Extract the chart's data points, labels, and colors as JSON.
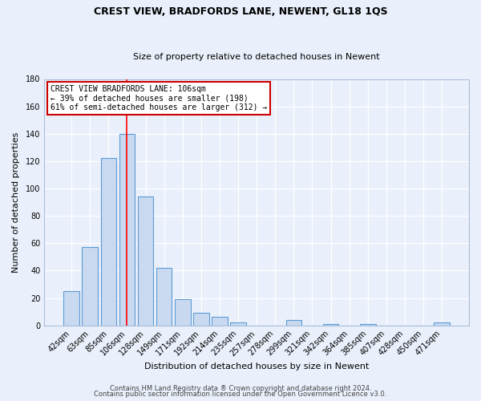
{
  "title": "CREST VIEW, BRADFORDS LANE, NEWENT, GL18 1QS",
  "subtitle": "Size of property relative to detached houses in Newent",
  "xlabel": "Distribution of detached houses by size in Newent",
  "ylabel": "Number of detached properties",
  "footnote1": "Contains HM Land Registry data ® Crown copyright and database right 2024.",
  "footnote2": "Contains public sector information licensed under the Open Government Licence v3.0.",
  "categories": [
    "42sqm",
    "63sqm",
    "85sqm",
    "106sqm",
    "128sqm",
    "149sqm",
    "171sqm",
    "192sqm",
    "214sqm",
    "235sqm",
    "257sqm",
    "278sqm",
    "299sqm",
    "321sqm",
    "342sqm",
    "364sqm",
    "385sqm",
    "407sqm",
    "428sqm",
    "450sqm",
    "471sqm"
  ],
  "values": [
    25,
    57,
    122,
    140,
    94,
    42,
    19,
    9,
    6,
    2,
    0,
    0,
    4,
    0,
    1,
    0,
    1,
    0,
    0,
    0,
    2
  ],
  "bar_color": "#c9d9f0",
  "bar_edge_color": "#5b9bd5",
  "bg_color": "#eaf0fb",
  "grid_color": "#ffffff",
  "red_line_x": 3,
  "annotation_text": "CREST VIEW BRADFORDS LANE: 106sqm\n← 39% of detached houses are smaller (198)\n61% of semi-detached houses are larger (312) →",
  "annotation_box_color": "#ffffff",
  "annotation_box_edge_color": "#cc0000",
  "ylim": [
    0,
    180
  ],
  "yticks": [
    0,
    20,
    40,
    60,
    80,
    100,
    120,
    140,
    160,
    180
  ],
  "title_fontsize": 9,
  "subtitle_fontsize": 8,
  "axis_label_fontsize": 8,
  "tick_fontsize": 7,
  "footnote_fontsize": 6,
  "annotation_fontsize": 7
}
